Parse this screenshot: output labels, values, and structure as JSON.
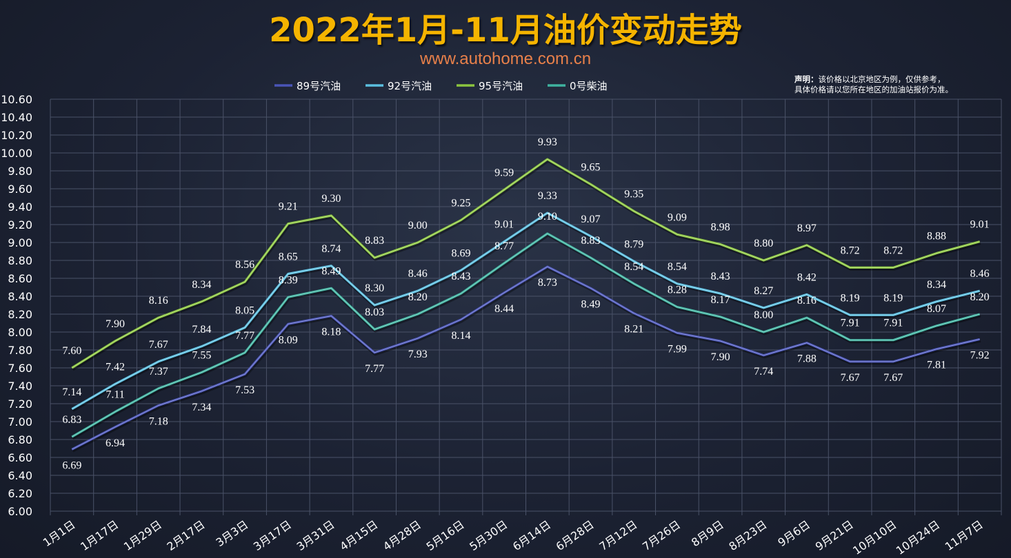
{
  "header": {
    "title": "2022年1月-11月油价变动走势",
    "subtitle": "www.autohome.com.cn",
    "notice_bold": "声明：",
    "notice_text": "该价格以北京地区为例，仅供参考，",
    "notice_text2": "具体价格请以您所在地区的加油站报价为准。"
  },
  "chart_data": {
    "type": "line",
    "title": "2022年1月-11月油价变动走势",
    "xlabel": "",
    "ylabel": "",
    "ylim": [
      6.0,
      10.6
    ],
    "y_ticks": [
      "6.00",
      "6.20",
      "6.40",
      "6.60",
      "6.80",
      "7.00",
      "7.20",
      "7.40",
      "7.60",
      "7.80",
      "8.00",
      "8.20",
      "8.40",
      "8.60",
      "8.80",
      "9.00",
      "9.20",
      "9.40",
      "9.60",
      "9.80",
      "10.00",
      "10.20",
      "10.40",
      "10.60"
    ],
    "categories": [
      "1月1日",
      "1月17日",
      "1月29日",
      "2月17日",
      "3月3日",
      "3月17日",
      "3月31日",
      "4月15日",
      "4月28日",
      "5月16日",
      "5月30日",
      "6月14日",
      "6月28日",
      "7月12日",
      "7月26日",
      "8月9日",
      "8月23日",
      "9月6日",
      "9月21日",
      "10月10日",
      "10月24日",
      "11月7日"
    ],
    "legend_position": "top",
    "grid": true,
    "series": [
      {
        "name": "89号汽油",
        "color": "#4a55b8",
        "values": [
          6.69,
          6.94,
          7.18,
          7.34,
          7.53,
          8.09,
          8.18,
          7.77,
          7.93,
          8.14,
          8.44,
          8.73,
          8.49,
          8.21,
          7.99,
          7.9,
          7.74,
          7.88,
          7.67,
          7.67,
          7.81,
          7.92
        ]
      },
      {
        "name": "92号汽油",
        "color": "#5bbfe0",
        "values": [
          7.14,
          7.42,
          7.67,
          7.84,
          8.05,
          8.65,
          8.74,
          8.3,
          8.46,
          8.69,
          9.01,
          9.33,
          9.07,
          8.79,
          8.54,
          8.43,
          8.27,
          8.42,
          8.19,
          8.19,
          8.34,
          8.46
        ]
      },
      {
        "name": "95号汽油",
        "color": "#8cc63f",
        "values": [
          7.6,
          7.9,
          8.16,
          8.34,
          8.56,
          9.21,
          9.3,
          8.83,
          9.0,
          9.25,
          9.59,
          9.93,
          9.65,
          9.35,
          9.09,
          8.98,
          8.8,
          8.97,
          8.72,
          8.72,
          8.88,
          9.01
        ]
      },
      {
        "name": "0号柴油",
        "color": "#3fb3a0",
        "values": [
          6.83,
          7.11,
          7.37,
          7.55,
          7.77,
          8.39,
          8.49,
          8.03,
          8.2,
          8.43,
          8.77,
          9.1,
          8.83,
          8.54,
          8.28,
          8.17,
          8.0,
          8.16,
          7.91,
          7.91,
          8.07,
          8.2
        ]
      }
    ]
  }
}
